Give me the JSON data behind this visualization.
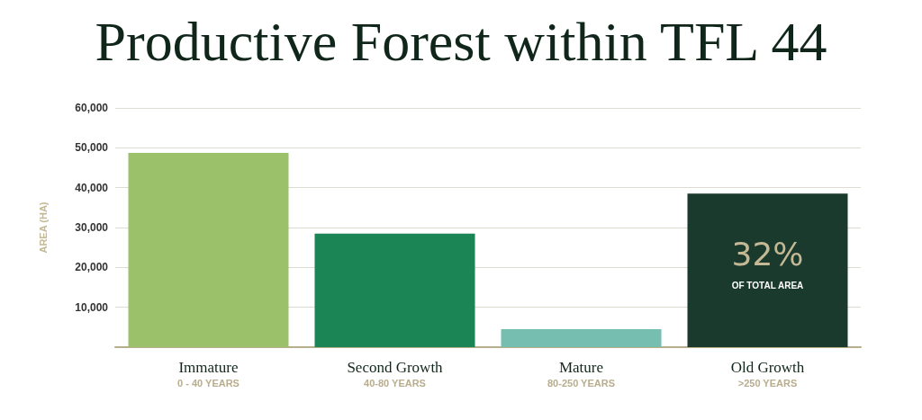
{
  "chart_data": {
    "type": "bar",
    "title": "Productive Forest within TFL 44",
    "ylabel": "AREA (HA)",
    "categories": [
      "Immature\n0 - 40 YEARS",
      "Second Growth\n40-80 YEARS",
      "Mature\n80-250 YEARS",
      "Old Growth\n>250 YEARS"
    ],
    "values": [
      48700,
      28500,
      4500,
      38500
    ],
    "colors": [
      "#9bc26a",
      "#1b8556",
      "#76bfb0",
      "#1b3a2e"
    ],
    "ylim": [
      0,
      60000
    ],
    "yticks": [
      {
        "value": 10000,
        "label": "10,000"
      },
      {
        "value": 20000,
        "label": "20,000"
      },
      {
        "value": 30000,
        "label": "30,000"
      },
      {
        "value": 40000,
        "label": "40,000"
      },
      {
        "value": 50000,
        "label": "50,000"
      },
      {
        "value": 60000,
        "label": "60,000"
      }
    ],
    "grid": "y",
    "annotations": [
      "32%",
      "OF TOTAL AREA"
    ]
  }
}
